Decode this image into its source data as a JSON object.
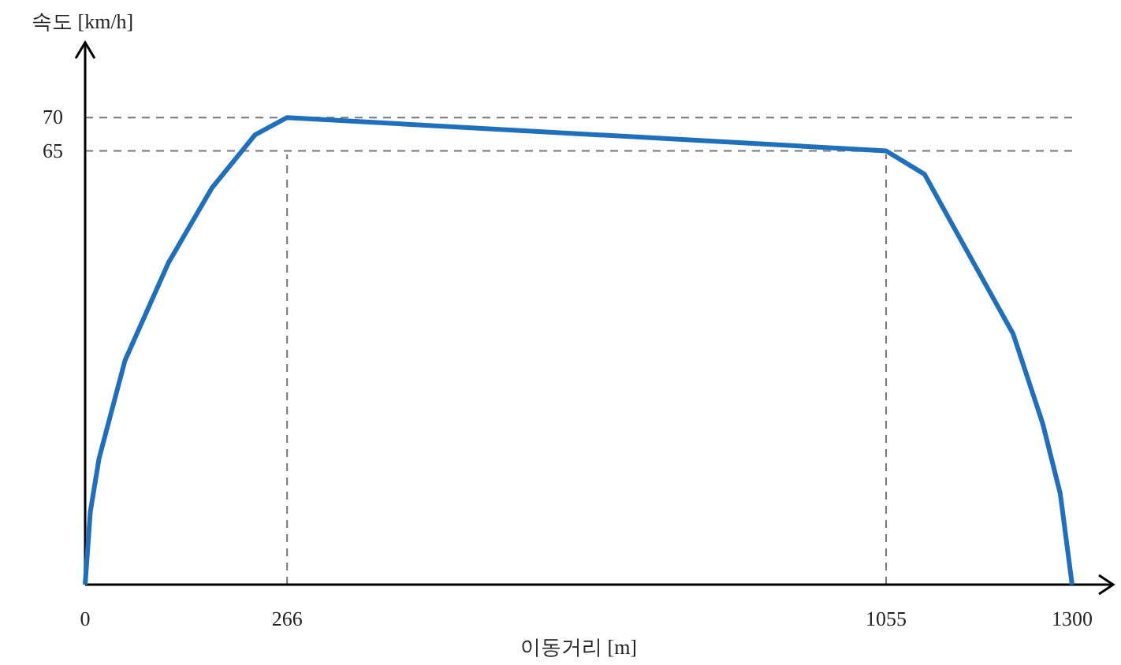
{
  "chart_data": {
    "type": "line",
    "xlabel": "이동거리 [m]",
    "ylabel": "속도 [km/h]",
    "xlim": [
      0,
      1300
    ],
    "xticks": [
      0,
      266,
      1055,
      1300
    ],
    "ylim": [
      0,
      81
    ],
    "yticks": [
      65,
      70
    ],
    "grid": false,
    "marker": "none",
    "line_style": "solid",
    "series": [
      {
        "color": "#1f6fbf",
        "x": [
          0,
          6.8,
          18.3,
          52.5,
          109.6,
          166.7,
          223.8,
          266,
          1055,
          1105.6,
          1144.4,
          1222.2,
          1261.1,
          1284.4,
          1300
        ],
        "values": [
          0,
          10.9,
          18.9,
          33.6,
          48.2,
          59.4,
          67.4,
          70,
          65,
          61.5,
          53.5,
          37.6,
          24.2,
          13.6,
          0
        ]
      }
    ],
    "ref_lines": [
      {
        "axis": "x",
        "value": 266,
        "color": "#777777",
        "line_style": "dashed"
      },
      {
        "axis": "x",
        "value": 1055,
        "color": "#777777",
        "line_style": "dashed"
      },
      {
        "axis": "y",
        "value": 70,
        "color": "#777777",
        "line_style": "dashed"
      },
      {
        "axis": "y",
        "value": 65,
        "color": "#777777",
        "line_style": "dashed"
      }
    ]
  }
}
